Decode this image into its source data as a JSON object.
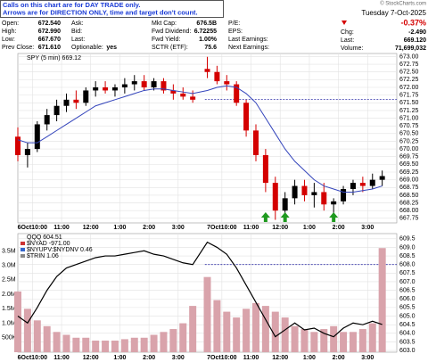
{
  "notice": [
    "Calls on this chart are for DAY TRADE only.",
    "Arrows are for DIRECTION ONLY, time and target don't count."
  ],
  "quote": {
    "columns": [
      [
        {
          "label": "Open:",
          "value": "672.540"
        },
        {
          "label": "High:",
          "value": "672.990"
        },
        {
          "label": "Low:",
          "value": "667.670"
        },
        {
          "label": "Prev Close:",
          "value": "671.610"
        }
      ],
      [
        {
          "label": "Ask:"
        },
        {
          "label": "Bid:"
        },
        {
          "label": "Last:"
        },
        {
          "label": "Optionable:",
          "value": "yes"
        }
      ],
      [
        {
          "label": "Mkt Cap:",
          "value": "676.5B"
        },
        {
          "label": "Fwd Dividend:",
          "value": "6.72255"
        },
        {
          "label": "Fwd Yield:",
          "value": "1.00%"
        },
        {
          "label": "SCTR (ETF):",
          "value": "75.6"
        }
      ],
      [
        {
          "label": "P/E:"
        },
        {
          "label": "EPS:"
        },
        {
          "label": "Last Earnings:"
        },
        {
          "label": "Next Earnings:"
        }
      ]
    ]
  },
  "summary": {
    "copyright": "© StockCharts.com",
    "date": "Tuesday 7-Oct-2025",
    "change_pct": "-0.37%",
    "change_label": "Chg:",
    "change": "-2.490",
    "last_label": "Last:",
    "last": "669.120",
    "volume_label": "Volume:",
    "volume": "71,699,032"
  },
  "chart_data": [
    {
      "type": "candlestick",
      "series": [
        {
          "name": "SPY (5 min) 669.12",
          "up_color": "#000000",
          "down_color": "#d40000",
          "x": [
            0,
            4,
            8,
            12,
            16,
            20,
            24,
            28,
            32,
            36,
            40,
            44,
            48,
            52,
            56,
            60,
            64,
            68,
            72,
            78,
            82,
            86,
            90,
            94,
            98,
            102,
            106,
            110,
            114,
            118,
            122,
            126,
            130,
            134,
            138,
            142,
            146,
            150
          ],
          "open": [
            670.4,
            669.8,
            670.0,
            670.8,
            671.1,
            671.4,
            671.6,
            671.5,
            671.9,
            672.0,
            671.9,
            672.0,
            672.1,
            672.2,
            672.0,
            672.2,
            671.9,
            671.8,
            671.7,
            672.6,
            672.5,
            672.2,
            672.1,
            671.5,
            670.6,
            669.8,
            668.9,
            668.0,
            668.4,
            668.8,
            668.5,
            668.6,
            668.2,
            668.3,
            668.7,
            668.9,
            668.8,
            669.0
          ],
          "high": [
            670.7,
            670.2,
            670.9,
            671.3,
            671.6,
            671.8,
            671.9,
            672.0,
            672.2,
            672.2,
            672.1,
            672.3,
            672.4,
            672.4,
            672.3,
            672.3,
            672.1,
            672.0,
            671.9,
            672.99,
            672.7,
            672.4,
            672.2,
            671.6,
            670.8,
            670.0,
            669.1,
            668.6,
            669.0,
            669.0,
            668.9,
            668.9,
            668.4,
            668.8,
            669.0,
            669.1,
            669.2,
            669.3
          ],
          "low": [
            669.6,
            669.4,
            669.9,
            670.6,
            670.9,
            671.2,
            671.3,
            671.4,
            671.7,
            671.8,
            671.7,
            671.8,
            671.9,
            671.9,
            671.9,
            671.8,
            671.6,
            671.6,
            671.5,
            672.3,
            672.1,
            671.9,
            671.4,
            670.4,
            669.6,
            668.6,
            667.7,
            667.8,
            668.2,
            668.3,
            668.1,
            668.0,
            667.8,
            668.2,
            668.5,
            668.6,
            668.7,
            668.8
          ],
          "close": [
            669.8,
            670.0,
            670.8,
            671.1,
            671.4,
            671.6,
            671.5,
            671.9,
            672.0,
            671.9,
            672.0,
            672.1,
            672.2,
            672.0,
            672.2,
            671.9,
            671.8,
            671.7,
            671.6,
            672.5,
            672.2,
            672.1,
            671.5,
            670.6,
            669.8,
            668.9,
            668.0,
            668.4,
            668.8,
            668.5,
            668.6,
            668.2,
            668.3,
            668.7,
            668.9,
            668.8,
            669.0,
            669.12
          ]
        }
      ],
      "moving_average": {
        "color": "#3344bb",
        "values": [
          670.3,
          670.2,
          670.2,
          670.4,
          670.6,
          670.8,
          671.0,
          671.2,
          671.4,
          671.5,
          671.6,
          671.7,
          671.8,
          671.9,
          671.95,
          671.95,
          671.9,
          671.85,
          671.8,
          671.9,
          672.0,
          672.05,
          672.0,
          671.8,
          671.5,
          671.0,
          670.5,
          670.0,
          669.6,
          669.3,
          669.0,
          668.8,
          668.7,
          668.6,
          668.6,
          668.65,
          668.7,
          668.8
        ]
      },
      "reference_line": {
        "value": 671.61,
        "color": "#3333aa"
      },
      "arrows": {
        "color": "#1f9a1f",
        "x": [
          102,
          110,
          130
        ]
      },
      "xlim": [
        0,
        156
      ],
      "xticks": [
        {
          "value": 6,
          "label": "6Oct10:00"
        },
        {
          "value": 18,
          "label": "11:00"
        },
        {
          "value": 30,
          "label": "12:00"
        },
        {
          "value": 42,
          "label": "1:00"
        },
        {
          "value": 54,
          "label": "2:00"
        },
        {
          "value": 66,
          "label": "3:00"
        },
        {
          "value": 84,
          "label": "7Oct10:00"
        },
        {
          "value": 96,
          "label": "11:00"
        },
        {
          "value": 108,
          "label": "12:00"
        },
        {
          "value": 120,
          "label": "1:00"
        },
        {
          "value": 132,
          "label": "2:00"
        },
        {
          "value": 144,
          "label": "3:00"
        }
      ],
      "ylim": [
        667.6,
        673.1
      ],
      "yticks": [
        {
          "value": 667.75,
          "label": "667.75"
        },
        {
          "value": 668,
          "label": "668.00"
        },
        {
          "value": 668.25,
          "label": "668.25"
        },
        {
          "value": 668.5,
          "label": "668.50"
        },
        {
          "value": 668.75,
          "label": "668.75"
        },
        {
          "value": 669,
          "label": "669.00"
        },
        {
          "value": 669.25,
          "label": "669.25"
        },
        {
          "value": 669.5,
          "label": "669.50"
        },
        {
          "value": 669.75,
          "label": "669.75"
        },
        {
          "value": 670,
          "label": "670.00"
        },
        {
          "value": 670.25,
          "label": "670.25"
        },
        {
          "value": 670.5,
          "label": "670.50"
        },
        {
          "value": 670.75,
          "label": "670.75"
        },
        {
          "value": 671,
          "label": "671.00"
        },
        {
          "value": 671.25,
          "label": "671.25"
        },
        {
          "value": 671.5,
          "label": "671.50"
        },
        {
          "value": 671.75,
          "label": "671.75"
        },
        {
          "value": 672,
          "label": "672.00"
        },
        {
          "value": 672.25,
          "label": "672.25"
        },
        {
          "value": 672.5,
          "label": "672.50"
        },
        {
          "value": 672.75,
          "label": "672.75"
        },
        {
          "value": 673,
          "label": "673.00"
        }
      ],
      "grid": true
    },
    {
      "type": "line",
      "series": [
        {
          "name": "QQQ 604.51",
          "color": "#000000",
          "x": [
            0,
            4,
            8,
            12,
            16,
            20,
            24,
            28,
            32,
            36,
            40,
            44,
            48,
            52,
            56,
            60,
            64,
            68,
            72,
            78,
            82,
            86,
            90,
            94,
            98,
            102,
            106,
            110,
            114,
            118,
            122,
            126,
            130,
            134,
            138,
            142,
            146,
            150
          ],
          "values": [
            605.0,
            604.6,
            605.5,
            606.5,
            607.3,
            607.8,
            608.0,
            608.2,
            608.4,
            608.5,
            608.5,
            608.6,
            608.7,
            608.8,
            608.6,
            608.5,
            608.3,
            608.1,
            608.0,
            609.3,
            609.0,
            608.6,
            607.8,
            606.8,
            605.8,
            604.8,
            603.8,
            604.2,
            604.6,
            604.2,
            604.3,
            604.0,
            603.8,
            604.3,
            604.6,
            604.5,
            604.7,
            604.51
          ]
        },
        {
          "type": "bar",
          "axis": "y2",
          "color": "#d9a3ab",
          "x": [
            0,
            4,
            8,
            12,
            16,
            20,
            24,
            28,
            32,
            36,
            40,
            44,
            48,
            52,
            56,
            60,
            64,
            68,
            72,
            78,
            82,
            86,
            90,
            94,
            98,
            102,
            106,
            110,
            114,
            118,
            122,
            126,
            130,
            134,
            138,
            142,
            146,
            150
          ],
          "values": [
            2100000,
            1500000,
            1100000,
            900000,
            700000,
            600000,
            500000,
            500000,
            400000,
            400000,
            400000,
            450000,
            500000,
            500000,
            600000,
            700000,
            800000,
            1000000,
            1600000,
            2600000,
            1800000,
            1400000,
            1200000,
            1500000,
            1700000,
            1600000,
            1400000,
            1200000,
            900000,
            800000,
            700000,
            800000,
            900000,
            700000,
            700000,
            800000,
            1000000,
            3600000
          ]
        }
      ],
      "indicators": [
        {
          "name": "$NYAD -971.00",
          "color": "#cc3333"
        },
        {
          "name": "$NYUPV:$NYDNV 0.46",
          "color": "#3366cc"
        },
        {
          "name": "$TRIN 1.06",
          "color": "#888888"
        }
      ],
      "reference_line": {
        "value": 608.0,
        "color": "#3333aa"
      },
      "xlim": [
        0,
        156
      ],
      "xticks": [
        {
          "value": 6,
          "label": "6Oct10:00"
        },
        {
          "value": 18,
          "label": "11:00"
        },
        {
          "value": 30,
          "label": "12:00"
        },
        {
          "value": 42,
          "label": "1:00"
        },
        {
          "value": 54,
          "label": "2:00"
        },
        {
          "value": 66,
          "label": "3:00"
        },
        {
          "value": 84,
          "label": "7Oct10:00"
        },
        {
          "value": 96,
          "label": "11:00"
        },
        {
          "value": 108,
          "label": "12:00"
        },
        {
          "value": 120,
          "label": "1:00"
        },
        {
          "value": 132,
          "label": "2:00"
        },
        {
          "value": 144,
          "label": "3:00"
        }
      ],
      "ylim": [
        602.9,
        609.8
      ],
      "yticks": [
        {
          "value": 603,
          "label": "603.0"
        },
        603.5,
        {
          "value": 604,
          "label": "604.0"
        },
        604.5,
        {
          "value": 605,
          "label": "605.0"
        },
        605.5,
        {
          "value": 606,
          "label": "606.0"
        },
        606.5,
        {
          "value": 607,
          "label": "607.0"
        },
        607.5,
        {
          "value": 608,
          "label": "608.0"
        },
        608.5,
        {
          "value": 609,
          "label": "609.0"
        },
        609.5
      ],
      "y2lim": [
        0,
        4100000
      ],
      "y2ticks": [
        {
          "value": 500000,
          "label": "500K"
        },
        {
          "value": 1000000,
          "label": "1.0M"
        },
        {
          "value": 1500000,
          "label": "1.5M"
        },
        {
          "value": 2000000,
          "label": "2.0M"
        },
        {
          "value": 2500000,
          "label": "2.5M"
        },
        {
          "value": 3000000,
          "label": "3.0M"
        },
        {
          "value": 3500000,
          "label": "3.5M"
        }
      ],
      "grid": true
    }
  ]
}
